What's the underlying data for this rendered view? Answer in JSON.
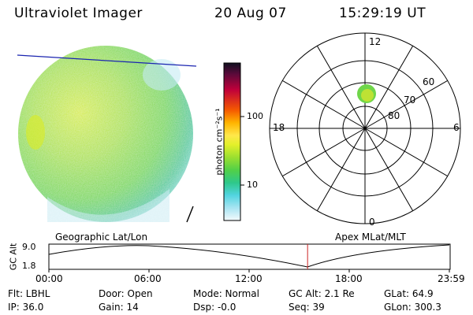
{
  "header": {
    "instrument": "Ultraviolet Imager",
    "date": "20 Aug 07",
    "time": "15:29:19 UT"
  },
  "colorbar": {
    "axis_label": "photon cm⁻²s⁻¹",
    "ticks": [
      "100",
      "10"
    ],
    "log_scale": true,
    "colors": [
      "#101020",
      "#5a0a3a",
      "#c0003a",
      "#f55a00",
      "#ffb400",
      "#ffe84a",
      "#e2f02a",
      "#9adf30",
      "#52d048",
      "#2ec88a",
      "#52d4e0",
      "#a8e4f2",
      "#f4fafc"
    ]
  },
  "polar_plot": {
    "mlt_labels": [
      "12",
      "18",
      "6",
      "0"
    ],
    "mlat_labels": [
      "60",
      "70",
      "80"
    ]
  },
  "timeline": {
    "left_title": "Geographic Lat/Lon",
    "right_title": "Apex MLat/MLT",
    "y_axis_label": "GC Alt",
    "y_ticks": [
      "9.0",
      "1.8"
    ],
    "x_ticks": [
      "00:00",
      "06:00",
      "12:00",
      "18:00",
      "23:59"
    ],
    "current_time_fraction": 0.646,
    "marker_color": "#cc2222"
  },
  "status": {
    "row1": [
      "Flt: LBHL",
      "Door: Open",
      "Mode: Normal",
      "GC Alt: 2.1 Re",
      "GLat:  64.9"
    ],
    "row2": [
      "IP: 36.0",
      "Gain: 14",
      "Dsp:   -0.0",
      "Seq: 39",
      "GLon: 300.3"
    ]
  }
}
